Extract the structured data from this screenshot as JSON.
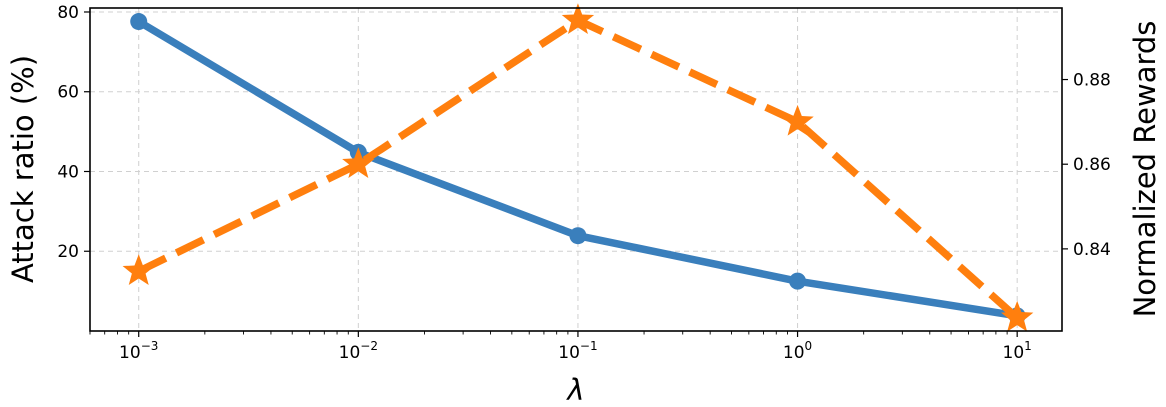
{
  "chart_data": {
    "type": "line",
    "xlabel": "λ",
    "ylabel": "Attack ratio (%)",
    "y2label": "Normalized Rewards",
    "x": [
      0.001,
      0.01,
      0.1,
      1,
      10
    ],
    "xscale": "log",
    "xlim": [
      0.0006,
      16
    ],
    "x_tick_labels": [
      {
        "value": 0.001,
        "base": "10",
        "exp": "−3"
      },
      {
        "value": 0.01,
        "base": "10",
        "exp": "−2"
      },
      {
        "value": 0.1,
        "base": "10",
        "exp": "−1"
      },
      {
        "value": 1,
        "base": "10",
        "exp": "0"
      },
      {
        "value": 10,
        "base": "10",
        "exp": "1"
      }
    ],
    "ylim": [
      0,
      81
    ],
    "y_ticks": [
      20,
      40,
      60,
      80
    ],
    "y2lim": [
      0.8206,
      0.8969
    ],
    "y2_ticks": [
      0.84,
      0.86,
      0.88
    ],
    "y2_tick_labels": [
      "0.84",
      "0.86",
      "0.88"
    ],
    "grid": true,
    "series": [
      {
        "axis": "left",
        "values": [
          77.6,
          44.8,
          23.9,
          12.5,
          3.8
        ],
        "color": "#3a7fbc",
        "marker": "circle",
        "dash": "solid"
      },
      {
        "axis": "right",
        "values": [
          0.8347,
          0.86,
          0.894,
          0.87,
          0.8237
        ],
        "color": "#ff7f0e",
        "marker": "star",
        "dash": "dashed"
      }
    ]
  }
}
